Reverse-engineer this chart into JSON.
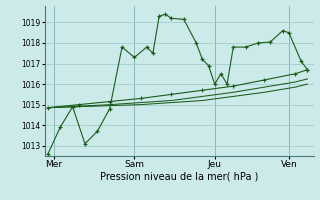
{
  "background_color": "#cdeaea",
  "plot_bg_color": "#cdeaea",
  "grid_color": "#9cc8c8",
  "line_color": "#1a5c1a",
  "xlabel": "Pression niveau de la mer( hPa )",
  "ylim": [
    1012.5,
    1019.8
  ],
  "yticks": [
    1013,
    1014,
    1015,
    1016,
    1017,
    1018,
    1019
  ],
  "xtick_labels": [
    "Mer",
    "Sam",
    "Jeu",
    "Ven"
  ],
  "xtick_positions": [
    1,
    14,
    27,
    39
  ],
  "vline_positions": [
    1,
    14,
    27,
    39
  ],
  "series1_x": [
    0,
    2,
    4,
    6,
    8,
    10,
    12,
    14,
    16,
    17,
    18,
    19,
    20,
    22,
    24,
    25,
    26,
    27,
    28,
    29,
    30,
    32,
    34,
    36,
    38,
    39,
    41,
    42
  ],
  "series1_y": [
    1012.6,
    1013.9,
    1014.9,
    1013.1,
    1013.7,
    1014.8,
    1017.8,
    1017.3,
    1017.8,
    1017.5,
    1019.3,
    1019.4,
    1019.2,
    1019.15,
    1018.0,
    1017.2,
    1016.9,
    1016.0,
    1016.5,
    1016.0,
    1017.8,
    1017.8,
    1018.0,
    1018.05,
    1018.6,
    1018.5,
    1017.1,
    1016.7
  ],
  "series2_x": [
    0,
    5,
    10,
    15,
    20,
    25,
    30,
    35,
    40,
    42
  ],
  "series2_y": [
    1014.85,
    1015.0,
    1015.15,
    1015.3,
    1015.5,
    1015.7,
    1015.9,
    1016.2,
    1016.5,
    1016.7
  ],
  "series3_x": [
    0,
    5,
    10,
    15,
    20,
    25,
    30,
    35,
    40,
    42
  ],
  "series3_y": [
    1014.85,
    1014.92,
    1015.0,
    1015.1,
    1015.2,
    1015.4,
    1015.6,
    1015.85,
    1016.1,
    1016.25
  ],
  "series4_x": [
    0,
    5,
    10,
    15,
    20,
    25,
    30,
    35,
    40,
    42
  ],
  "series4_y": [
    1014.85,
    1014.9,
    1014.95,
    1015.0,
    1015.1,
    1015.2,
    1015.4,
    1015.6,
    1015.85,
    1016.0
  ]
}
